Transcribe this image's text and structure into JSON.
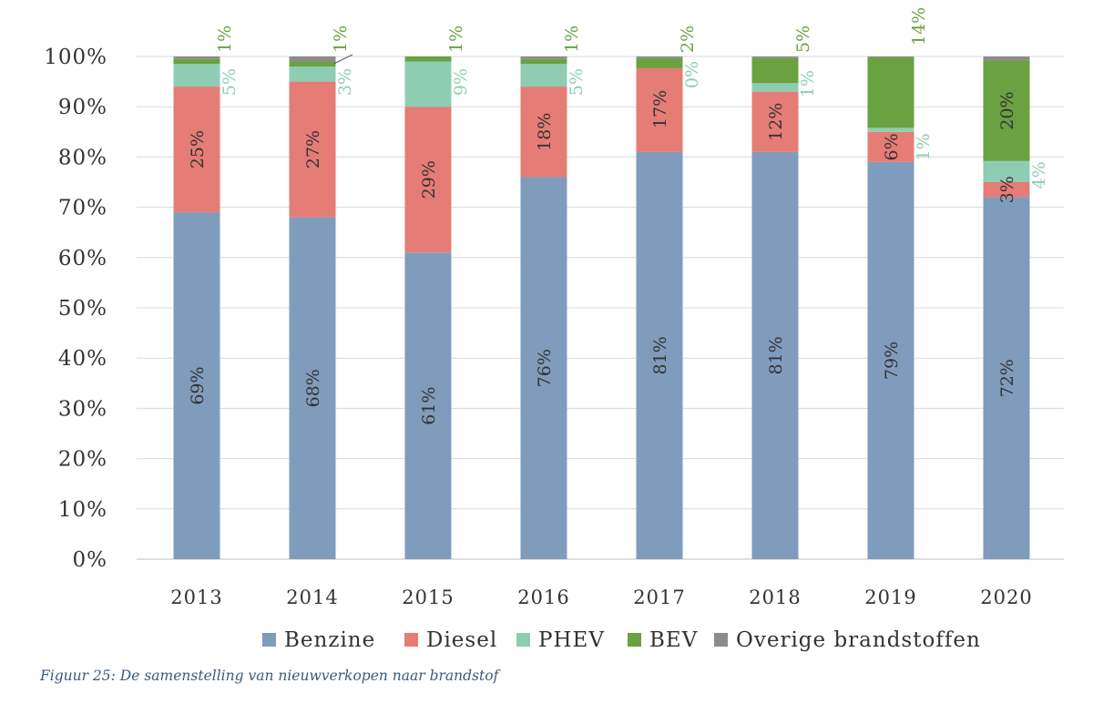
{
  "caption": "Figuur 25: De samenstelling van nieuwverkopen naar brandstof",
  "chart_data": {
    "type": "bar",
    "stacked": true,
    "categories": [
      "2013",
      "2014",
      "2015",
      "2016",
      "2017",
      "2018",
      "2019",
      "2020"
    ],
    "ylim": [
      0,
      100
    ],
    "yticks": [
      "0%",
      "10%",
      "20%",
      "30%",
      "40%",
      "50%",
      "60%",
      "70%",
      "80%",
      "90%",
      "100%"
    ],
    "legend_position": "bottom",
    "grid": true,
    "series": [
      {
        "name": "Benzine",
        "color": "#7f9cbc",
        "label_color": "#333333",
        "values": [
          69,
          68,
          61,
          76,
          81,
          81,
          79,
          72
        ],
        "labels": [
          "69%",
          "68%",
          "61%",
          "76%",
          "81%",
          "81%",
          "79%",
          "72%"
        ]
      },
      {
        "name": "Diesel",
        "color": "#e57c76",
        "label_color": "#333333",
        "values": [
          25,
          27,
          29,
          18,
          17,
          12,
          6,
          3
        ],
        "labels": [
          "25%",
          "27%",
          "29%",
          "18%",
          "17%",
          "12%",
          "6%",
          "3%"
        ]
      },
      {
        "name": "PHEV",
        "color": "#8ecdb2",
        "label_color": "#8ecdb2",
        "values": [
          5,
          3,
          9,
          5,
          0,
          1,
          1,
          4
        ],
        "labels": [
          "5%",
          "3%",
          "9%",
          "5%",
          "0%",
          "1%",
          "1%",
          "4%"
        ]
      },
      {
        "name": "BEV",
        "color": "#6aa141",
        "label_color": "#6aa141",
        "values": [
          1,
          1,
          1,
          1,
          2,
          5,
          14,
          20
        ],
        "labels": [
          "1%",
          "1%",
          "1%",
          "1%",
          "2%",
          "5%",
          "14%",
          "20%"
        ]
      },
      {
        "name": "Overige brandstoffen",
        "color": "#8c8c8c",
        "label_color": "#8c8c8c",
        "values": [
          0.5,
          1,
          0,
          0.5,
          0.3,
          0.3,
          0.2,
          0.8
        ],
        "labels": []
      }
    ]
  }
}
